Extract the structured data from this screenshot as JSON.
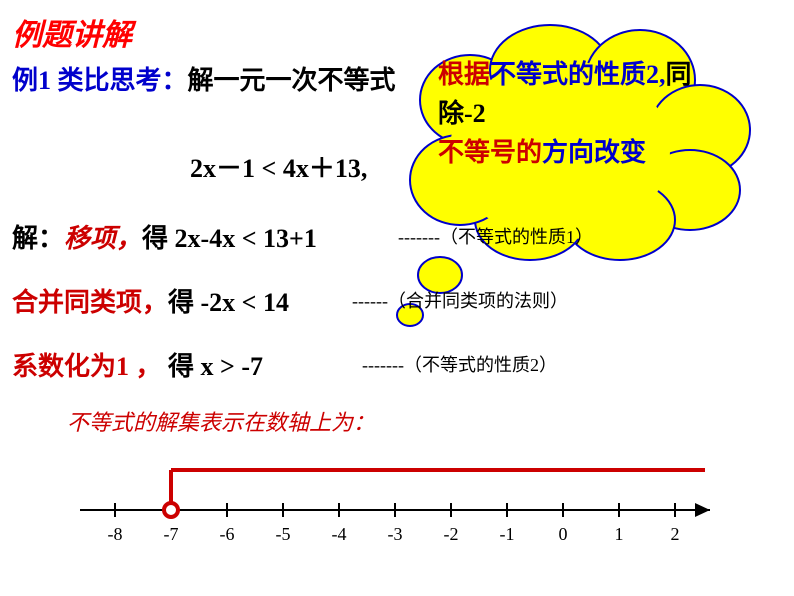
{
  "title": {
    "text": "例题讲解",
    "color": "#ff0000"
  },
  "problem": {
    "prefix": "例1  类比思考：",
    "prefix_color": "#0000cc",
    "main": "解一元一次不等式",
    "main_color": "#000000"
  },
  "equation": {
    "text": "2x－1 < 4x＋13,",
    "color": "#000000"
  },
  "step1": {
    "label": "解：",
    "label_color": "#000000",
    "action": "移项，",
    "action_color": "#cc0000",
    "result": "得  2x-4x < 13+1",
    "result_color": "#000000",
    "annotation": "-------（不等式的性质1）",
    "annotation_color": "#000000"
  },
  "step2": {
    "action": "合并同类项，",
    "action_color": "#cc0000",
    "result": "得  -2x < 14",
    "result_color": "#000000",
    "annotation": "------（合并同类项的法则）",
    "annotation_color": "#000000"
  },
  "step3": {
    "action": "系数化为1 ，",
    "action_color": "#cc0000",
    "result": " 得     x > -7",
    "result_color": "#000000",
    "annotation": "-------（不等式的性质2）",
    "annotation_color": "#000000"
  },
  "conclusion": {
    "text": "不等式的解集表示在数轴上为：",
    "color": "#cc0000"
  },
  "cloud": {
    "line1_a": "根据",
    "line1_a_color": "#cc0000",
    "line1_b": "不等式的性质2,",
    "line1_b_color": "#0000cc",
    "line2_a": "同除-2",
    "line2_a_color": "#000000",
    "line3_a": "不等号的",
    "line3_a_color": "#cc0000",
    "line3_b": "方向改变",
    "line3_b_color": "#0000cc",
    "bg_color": "#ffff00",
    "border_color": "#0000cc"
  },
  "number_line": {
    "ticks": [
      "-8",
      "-7",
      "-6",
      "-5",
      "-4",
      "-3",
      "-2",
      "-1",
      "0",
      "1",
      "2"
    ],
    "open_point": -7,
    "direction": "right",
    "tick_color": "#000000",
    "line_color": "#000000",
    "bracket_color": "#cc0000",
    "tick_fontsize": 18
  }
}
